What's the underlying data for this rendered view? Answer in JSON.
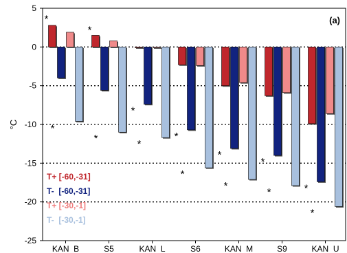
{
  "chart_data": {
    "type": "bar",
    "panel_label": "(a)",
    "ylabel": "°C",
    "xlabel": "",
    "ylim": [
      -25,
      5
    ],
    "yticks": [
      5,
      0,
      -5,
      -10,
      -15,
      -20,
      -25
    ],
    "gridlines": [
      0,
      -5,
      -10,
      -15,
      -20
    ],
    "grid": "horizontal dotted",
    "legend_position": "lower-left",
    "categories": [
      "KAN  B",
      "S5",
      "KAN  L",
      "S6",
      "KAN  M",
      "S9",
      "KAN  U"
    ],
    "series": [
      {
        "name": "T+ [-60,-31]",
        "color": "#c0272d",
        "label_color": "#c0272d",
        "values": [
          2.8,
          1.5,
          -0.1,
          -2.3,
          -5.0,
          -6.3,
          -9.9
        ]
      },
      {
        "name": "T-  [-60,-31]",
        "color": "#12237f",
        "label_color": "#12237f",
        "values": [
          -4.0,
          -5.6,
          -7.4,
          -10.7,
          -13.1,
          -14.0,
          -17.4
        ]
      },
      {
        "name": "T+ [-30,-1]",
        "color": "#f08a8a",
        "label_color": "#f07c7c",
        "values": [
          1.9,
          0.8,
          -0.1,
          -2.4,
          -4.6,
          -5.9,
          -8.6
        ]
      },
      {
        "name": "T-  [-30,-1]",
        "color": "#a8c0de",
        "label_color": "#a8c0de",
        "values": [
          -9.6,
          -11.0,
          -11.7,
          -15.6,
          -17.1,
          -17.9,
          -20.6
        ]
      }
    ],
    "significance_marker": "*",
    "annotations": [
      {
        "category": "KAN  B",
        "value": 3.7
      },
      {
        "category": "KAN  B",
        "value": -10.4
      },
      {
        "category": "S5",
        "value": 2.3
      },
      {
        "category": "S5",
        "value": -11.7
      },
      {
        "category": "KAN  L",
        "value": -8.1
      },
      {
        "category": "KAN  L",
        "value": -12.4
      },
      {
        "category": "S6",
        "value": -11.4
      },
      {
        "category": "S6",
        "value": -16.3
      },
      {
        "category": "KAN  M",
        "value": -13.8
      },
      {
        "category": "KAN  M",
        "value": -17.8
      },
      {
        "category": "S9",
        "value": -14.7
      },
      {
        "category": "S9",
        "value": -18.6
      },
      {
        "category": "KAN  U",
        "value": -18.1
      },
      {
        "category": "KAN  U",
        "value": -21.3
      }
    ]
  }
}
